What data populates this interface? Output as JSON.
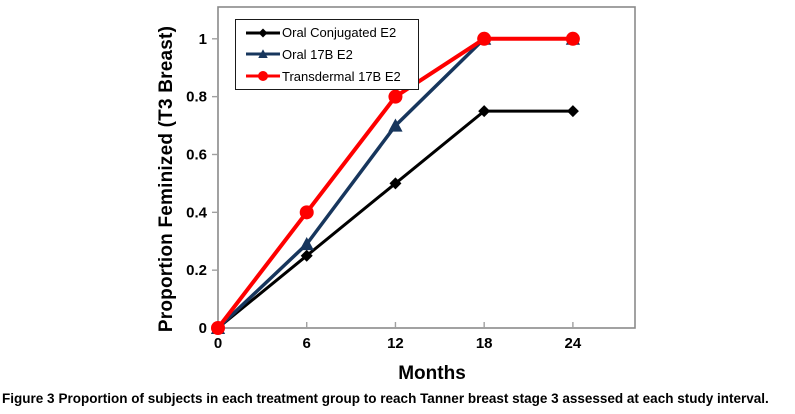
{
  "chart_data": {
    "type": "line",
    "x": [
      0,
      6,
      12,
      18,
      24
    ],
    "series": [
      {
        "name": "Oral Conjugated E2",
        "color": "#000000",
        "marker": "diamond",
        "values": [
          0,
          0.25,
          0.5,
          0.75,
          0.75
        ]
      },
      {
        "name": "Oral 17B E2",
        "color": "#17365D",
        "marker": "triangle",
        "values": [
          0,
          0.29,
          0.7,
          1,
          1
        ]
      },
      {
        "name": "Transdermal 17B E2",
        "color": "#FE0000",
        "marker": "circle",
        "values": [
          0,
          0.4,
          0.8,
          1,
          1
        ]
      }
    ],
    "xlabel": "Months",
    "ylabel": "Proportion Feminized (T3 Breast)",
    "x_ticks": [
      0,
      6,
      12,
      18,
      24
    ],
    "y_ticks": [
      0,
      0.2,
      0.4,
      0.6,
      0.8,
      1
    ],
    "xlim": [
      0,
      28.2
    ],
    "ylim": [
      0,
      1.11
    ],
    "grid": false,
    "legend_position": "top-left-inside"
  },
  "caption": {
    "label": "Figure 3",
    "text": "Proportion of subjects in each treatment group to reach Tanner breast stage 3 assessed at each study interval."
  }
}
